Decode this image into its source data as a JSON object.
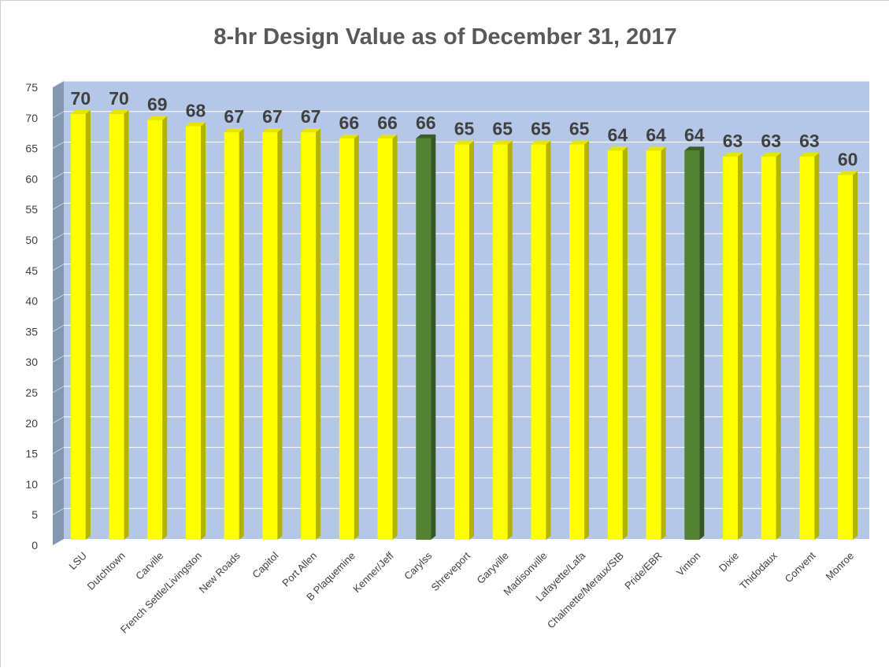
{
  "colors": {
    "yellow_face": "#ffff00",
    "yellow_side": "#b3b300",
    "yellow_top": "#e6e600",
    "green_face": "#548235",
    "green_side": "#375623",
    "green_top": "#3b5e26",
    "plot_bg": "#b4c7e7",
    "wall_side": "#8497b0",
    "grid": "#ffffff",
    "text": "#404040",
    "label_text": "#404040"
  },
  "chart_data": {
    "type": "bar",
    "title": "8-hr Design Value as of December 31, 2017",
    "xlabel": "",
    "ylabel": "",
    "ylim": [
      0,
      75
    ],
    "ytick_step": 5,
    "grid": true,
    "legend": "none",
    "style": "3d-column",
    "categories": [
      "LSU",
      "Dutchtown",
      "Carville",
      "French Settle/Livingston",
      "New Roads",
      "Capitol",
      "Port Allen",
      "B Plaquemine",
      "Kenner/Jeff",
      "Carylss",
      "Shreveport",
      "Garyville",
      "Madisonville",
      "Lafayette/Lafa",
      "Chalmette/Meraux/StB",
      "Pride/EBR",
      "Vinton",
      "Dixie",
      "Thidodaux",
      "Convent",
      "Monroe"
    ],
    "values": [
      70,
      70,
      69,
      68,
      67,
      67,
      67,
      66,
      66,
      66,
      65,
      65,
      65,
      65,
      64,
      64,
      64,
      63,
      63,
      63,
      60
    ],
    "data_labels": [
      "70",
      "70",
      "69",
      "68",
      "67",
      "67",
      "67",
      "66",
      "66",
      "66",
      "65",
      "65",
      "65",
      "65",
      "64",
      "64",
      "64",
      "63",
      "63",
      "63",
      "60"
    ],
    "bar_colors": [
      "yellow",
      "yellow",
      "yellow",
      "yellow",
      "yellow",
      "yellow",
      "yellow",
      "yellow",
      "yellow",
      "green",
      "yellow",
      "yellow",
      "yellow",
      "yellow",
      "yellow",
      "yellow",
      "green",
      "yellow",
      "yellow",
      "yellow",
      "yellow"
    ]
  }
}
